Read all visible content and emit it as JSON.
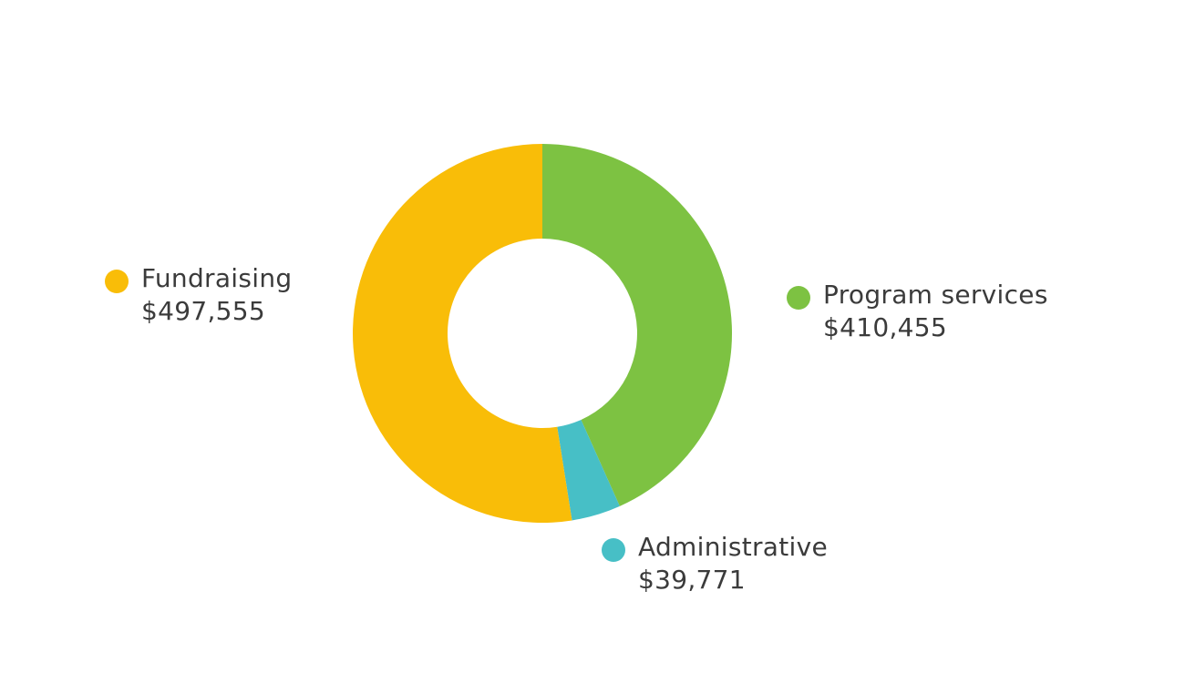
{
  "chart_data": {
    "type": "pie",
    "donut": true,
    "slices": [
      {
        "label": "Program services",
        "value": 410455,
        "display": "$410,455",
        "color": "#7dc242"
      },
      {
        "label": "Administrative",
        "value": 39771,
        "display": "$39,771",
        "color": "#47bfc6"
      },
      {
        "label": "Fundraising",
        "value": 497555,
        "display": "$497,555",
        "color": "#f9bd08"
      }
    ]
  }
}
